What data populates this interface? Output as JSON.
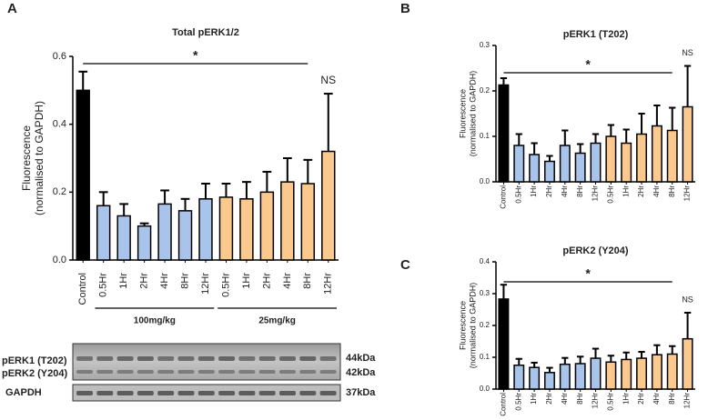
{
  "chart_data": [
    {
      "type": "bar",
      "panel": "A",
      "title": "Total pERK1/2",
      "ylabel": [
        "Fluorescence",
        "(normalised to GAPDH)"
      ],
      "categories": [
        "Control",
        "0.5Hr",
        "1Hr",
        "2Hr",
        "4Hr",
        "8Hr",
        "12Hr",
        "0.5Hr",
        "1Hr",
        "2Hr",
        "4Hr",
        "8Hr",
        "12Hr"
      ],
      "values": [
        0.5,
        0.16,
        0.13,
        0.1,
        0.165,
        0.145,
        0.18,
        0.185,
        0.18,
        0.2,
        0.23,
        0.225,
        0.32
      ],
      "errors": [
        0.055,
        0.04,
        0.035,
        0.008,
        0.04,
        0.035,
        0.045,
        0.04,
        0.05,
        0.06,
        0.07,
        0.07,
        0.17
      ],
      "colors": [
        "#000000",
        "#a9c4eb",
        "#a9c4eb",
        "#a9c4eb",
        "#a9c4eb",
        "#a9c4eb",
        "#a9c4eb",
        "#fbc98e",
        "#fbc98e",
        "#fbc98e",
        "#fbc98e",
        "#fbc98e",
        "#fbc98e"
      ],
      "ylim": [
        0,
        0.6
      ],
      "yticks": [
        {
          "value": 0,
          "label": "0.0"
        },
        0.2,
        0.4,
        0.6
      ],
      "annotations": [
        "*",
        "NS"
      ],
      "groups": [
        "100mg/kg",
        "25mg/kg"
      ]
    },
    {
      "type": "bar",
      "panel": "B",
      "title": "pERK1 (T202)",
      "ylabel": [
        "Fluorescence",
        "(normalised to GAPDH)"
      ],
      "categories": [
        "Control",
        "0.5Hr",
        "1Hr",
        "2Hr",
        "4Hr",
        "8Hr",
        "12Hr",
        "0.5Hr",
        "1Hr",
        "2Hr",
        "4Hr",
        "8Hr",
        "12Hr"
      ],
      "values": [
        0.213,
        0.08,
        0.06,
        0.045,
        0.08,
        0.063,
        0.085,
        0.1,
        0.085,
        0.105,
        0.123,
        0.113,
        0.165
      ],
      "errors": [
        0.015,
        0.025,
        0.025,
        0.012,
        0.033,
        0.02,
        0.02,
        0.025,
        0.03,
        0.045,
        0.045,
        0.05,
        0.09
      ],
      "colors": [
        "#000000",
        "#a9c4eb",
        "#a9c4eb",
        "#a9c4eb",
        "#a9c4eb",
        "#a9c4eb",
        "#a9c4eb",
        "#fbc98e",
        "#fbc98e",
        "#fbc98e",
        "#fbc98e",
        "#fbc98e",
        "#fbc98e"
      ],
      "ylim": [
        0,
        0.3
      ],
      "yticks": [
        {
          "value": 0,
          "label": "0.0"
        },
        0.1,
        0.2,
        0.3
      ],
      "annotations": [
        "*",
        "NS"
      ]
    },
    {
      "type": "bar",
      "panel": "C",
      "title": "pERK2 (Y204)",
      "ylabel": [
        "Fluorescence",
        "(normalised to GAPDH)"
      ],
      "categories": [
        "Control",
        "0.5Hr",
        "1Hr",
        "2Hr",
        "4Hr",
        "8Hr",
        "12Hr",
        "0.5Hr",
        "1Hr",
        "2Hr",
        "4Hr",
        "8Hr",
        "12Hr"
      ],
      "values": [
        0.283,
        0.075,
        0.068,
        0.052,
        0.078,
        0.08,
        0.097,
        0.085,
        0.093,
        0.097,
        0.108,
        0.11,
        0.158
      ],
      "errors": [
        0.045,
        0.02,
        0.015,
        0.015,
        0.02,
        0.022,
        0.03,
        0.02,
        0.022,
        0.02,
        0.03,
        0.025,
        0.082
      ],
      "colors": [
        "#000000",
        "#a9c4eb",
        "#a9c4eb",
        "#a9c4eb",
        "#a9c4eb",
        "#a9c4eb",
        "#a9c4eb",
        "#fbc98e",
        "#fbc98e",
        "#fbc98e",
        "#fbc98e",
        "#fbc98e",
        "#fbc98e"
      ],
      "ylim": [
        0,
        0.4
      ],
      "yticks": [
        {
          "value": 0,
          "label": "0.0"
        },
        0.1,
        0.2,
        0.3,
        0.4
      ],
      "annotations": [
        "*",
        "NS"
      ]
    }
  ],
  "blot": {
    "rows": [
      "pERK1 (T202)",
      "pERK2 (Y204)",
      "GAPDH"
    ],
    "sizes": [
      "44kDa",
      "42kDa",
      "37kDa"
    ]
  }
}
